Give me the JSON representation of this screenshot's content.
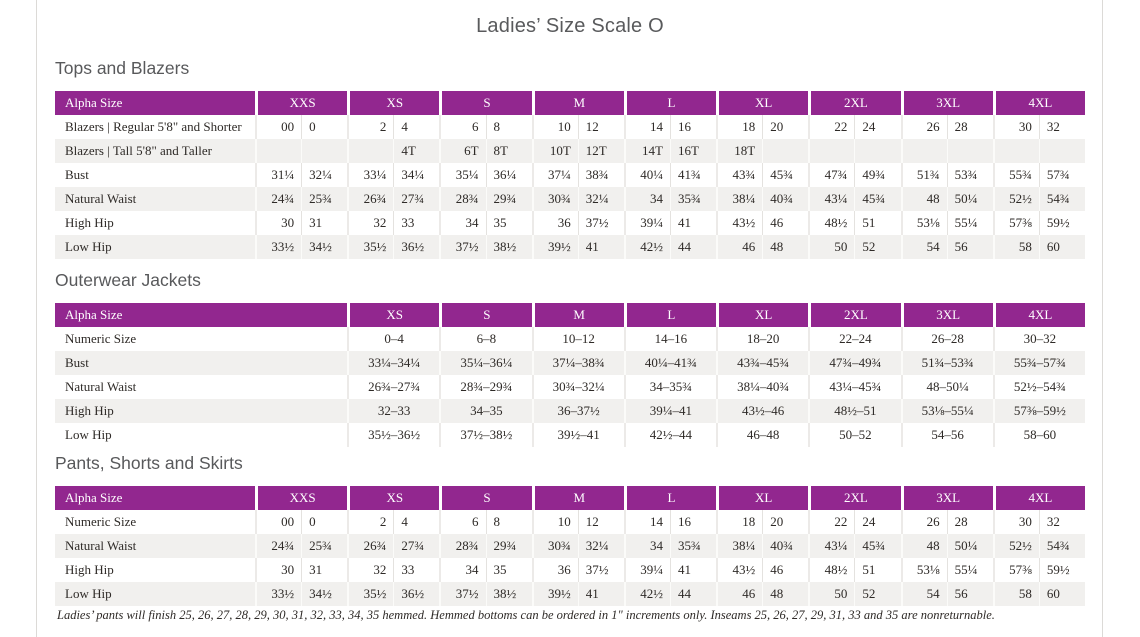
{
  "page": {
    "title": "Ladies’ Size Scale O",
    "footnote": "Ladies’ pants will finish 25, 26, 27, 28, 29, 30, 31, 32, 33, 34, 35 hemmed. Hemmed bottoms can be ordered in 1\" increments only. Inseams 25, 26, 27, 29, 31, 33 and 35 are nonreturnable."
  },
  "colors": {
    "header_purple": "#92278f",
    "row_stripe": "#f1f0ee",
    "heading_gray": "#58595b",
    "body_text": "#2e2a27",
    "page_edge": "#dcdad7"
  },
  "tables": [
    {
      "id": "tops-and-blazers",
      "heading": "Tops and Blazers",
      "layout": "paired",
      "label_header": "Alpha Size",
      "size_headers": [
        "XXS",
        "XS",
        "S",
        "M",
        "L",
        "XL",
        "2XL",
        "3XL",
        "4XL"
      ],
      "rows": [
        {
          "label": "Blazers | Regular 5'8\" and Shorter",
          "values": [
            "00",
            "0",
            "2",
            "4",
            "6",
            "8",
            "10",
            "12",
            "14",
            "16",
            "18",
            "20",
            "22",
            "24",
            "26",
            "28",
            "30",
            "32"
          ]
        },
        {
          "label": "Blazers | Tall 5'8\" and Taller",
          "values": [
            "",
            "",
            "",
            "4T",
            "6T",
            "8T",
            "10T",
            "12T",
            "14T",
            "16T",
            "18T",
            "",
            "",
            "",
            "",
            "",
            "",
            ""
          ]
        },
        {
          "label": "Bust",
          "values": [
            "31¼",
            "32¼",
            "33¼",
            "34¼",
            "35¼",
            "36¼",
            "37¼",
            "38¾",
            "40¼",
            "41¾",
            "43¾",
            "45¾",
            "47¾",
            "49¾",
            "51¾",
            "53¾",
            "55¾",
            "57¾"
          ]
        },
        {
          "label": "Natural Waist",
          "values": [
            "24¾",
            "25¾",
            "26¾",
            "27¾",
            "28¾",
            "29¾",
            "30¾",
            "32¼",
            "34",
            "35¾",
            "38¼",
            "40¾",
            "43¼",
            "45¾",
            "48",
            "50¼",
            "52½",
            "54¾"
          ]
        },
        {
          "label": "High Hip",
          "values": [
            "30",
            "31",
            "32",
            "33",
            "34",
            "35",
            "36",
            "37½",
            "39¼",
            "41",
            "43½",
            "46",
            "48½",
            "51",
            "53⅛",
            "55¼",
            "57⅜",
            "59½"
          ]
        },
        {
          "label": "Low Hip",
          "values": [
            "33½",
            "34½",
            "35½",
            "36½",
            "37½",
            "38½",
            "39½",
            "41",
            "42½",
            "44",
            "46",
            "48",
            "50",
            "52",
            "54",
            "56",
            "58",
            "60"
          ]
        }
      ]
    },
    {
      "id": "outerwear-jackets",
      "heading": "Outerwear Jackets",
      "layout": "single",
      "label_header": "Alpha Size",
      "size_headers": [
        "XS",
        "S",
        "M",
        "L",
        "XL",
        "2XL",
        "3XL",
        "4XL"
      ],
      "rows": [
        {
          "label": "Numeric Size",
          "values": [
            "0–4",
            "6–8",
            "10–12",
            "14–16",
            "18–20",
            "22–24",
            "26–28",
            "30–32"
          ]
        },
        {
          "label": "Bust",
          "values": [
            "33¼–34¼",
            "35¼–36¼",
            "37¼–38¾",
            "40¼–41¾",
            "43¾–45¾",
            "47¾–49¾",
            "51¾–53¾",
            "55¾–57¾"
          ]
        },
        {
          "label": "Natural Waist",
          "values": [
            "26¾–27¾",
            "28¾–29¾",
            "30¾–32¼",
            "34–35¾",
            "38¼–40¾",
            "43¼–45¾",
            "48–50¼",
            "52½–54¾"
          ]
        },
        {
          "label": "High Hip",
          "values": [
            "32–33",
            "34–35",
            "36–37½",
            "39¼–41",
            "43½–46",
            "48½–51",
            "53⅛–55¼",
            "57⅜–59½"
          ]
        },
        {
          "label": "Low Hip",
          "values": [
            "35½–36½",
            "37½–38½",
            "39½–41",
            "42½–44",
            "46–48",
            "50–52",
            "54–56",
            "58–60"
          ]
        }
      ]
    },
    {
      "id": "pants-shorts-and-skirts",
      "heading": "Pants, Shorts and Skirts",
      "layout": "paired",
      "label_header": "Alpha Size",
      "size_headers": [
        "XXS",
        "XS",
        "S",
        "M",
        "L",
        "XL",
        "2XL",
        "3XL",
        "4XL"
      ],
      "rows": [
        {
          "label": "Numeric Size",
          "values": [
            "00",
            "0",
            "2",
            "4",
            "6",
            "8",
            "10",
            "12",
            "14",
            "16",
            "18",
            "20",
            "22",
            "24",
            "26",
            "28",
            "30",
            "32"
          ]
        },
        {
          "label": "Natural Waist",
          "values": [
            "24¾",
            "25¾",
            "26¾",
            "27¾",
            "28¾",
            "29¾",
            "30¾",
            "32¼",
            "34",
            "35¾",
            "38¼",
            "40¾",
            "43¼",
            "45¾",
            "48",
            "50¼",
            "52½",
            "54¾"
          ]
        },
        {
          "label": "High Hip",
          "values": [
            "30",
            "31",
            "32",
            "33",
            "34",
            "35",
            "36",
            "37½",
            "39¼",
            "41",
            "43½",
            "46",
            "48½",
            "51",
            "53⅛",
            "55¼",
            "57⅜",
            "59½"
          ]
        },
        {
          "label": "Low Hip",
          "values": [
            "33½",
            "34½",
            "35½",
            "36½",
            "37½",
            "38½",
            "39½",
            "41",
            "42½",
            "44",
            "46",
            "48",
            "50",
            "52",
            "54",
            "56",
            "58",
            "60"
          ]
        }
      ]
    }
  ]
}
